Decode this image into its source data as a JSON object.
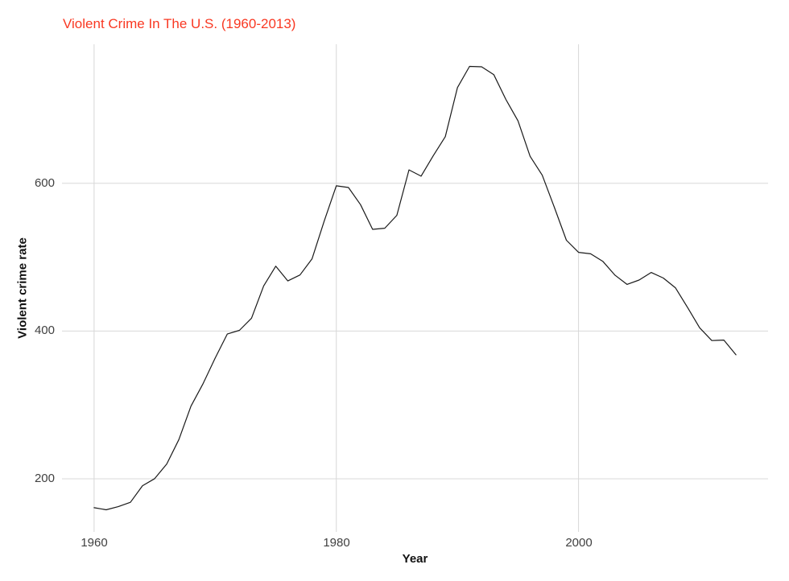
{
  "title": {
    "text": "Violent Crime In The U.S. (1960-2013)",
    "color": "#f93822"
  },
  "axes": {
    "x_label": "Year",
    "y_label": "Violent crime rate",
    "x_tick_labels": [
      "1960",
      "1980",
      "2000"
    ],
    "y_tick_labels": [
      "200",
      "400",
      "600"
    ]
  },
  "chart_data": {
    "type": "line",
    "title": "Violent Crime In The U.S. (1960-2013)",
    "xlabel": "Year",
    "ylabel": "Violent crime rate",
    "x": [
      1960,
      1961,
      1962,
      1963,
      1964,
      1965,
      1966,
      1967,
      1968,
      1969,
      1970,
      1971,
      1972,
      1973,
      1974,
      1975,
      1976,
      1977,
      1978,
      1979,
      1980,
      1981,
      1982,
      1983,
      1984,
      1985,
      1986,
      1987,
      1988,
      1989,
      1990,
      1991,
      1992,
      1993,
      1994,
      1995,
      1996,
      1997,
      1998,
      1999,
      2000,
      2001,
      2002,
      2003,
      2004,
      2005,
      2006,
      2007,
      2008,
      2009,
      2010,
      2011,
      2012,
      2013
    ],
    "series": [
      {
        "name": "violent crime rate",
        "color": "#1a1a1a",
        "values": [
          160.9,
          158.1,
          162.3,
          168.2,
          190.6,
          200.2,
          220.0,
          253.2,
          298.4,
          328.7,
          363.5,
          396.0,
          401.0,
          417.4,
          461.1,
          487.8,
          467.8,
          475.9,
          497.8,
          548.9,
          596.6,
          594.3,
          571.1,
          537.7,
          539.2,
          556.6,
          618.2,
          609.7,
          637.2,
          663.1,
          729.6,
          758.2,
          757.7,
          747.1,
          713.6,
          684.5,
          636.6,
          611.0,
          567.6,
          523.0,
          506.5,
          504.5,
          494.4,
          475.8,
          463.2,
          469.0,
          479.3,
          471.8,
          458.6,
          431.9,
          404.5,
          387.1,
          387.8,
          367.9
        ]
      }
    ],
    "x_ticks": [
      1960,
      1980,
      2000
    ],
    "y_ticks": [
      200,
      400,
      600
    ],
    "xlim": [
      1957.35,
      2015.65
    ],
    "ylim": [
      128.1,
      788.2
    ],
    "grid": "major",
    "grid_color": "#d8d8d8",
    "background": "#ffffff",
    "legend": "none"
  }
}
